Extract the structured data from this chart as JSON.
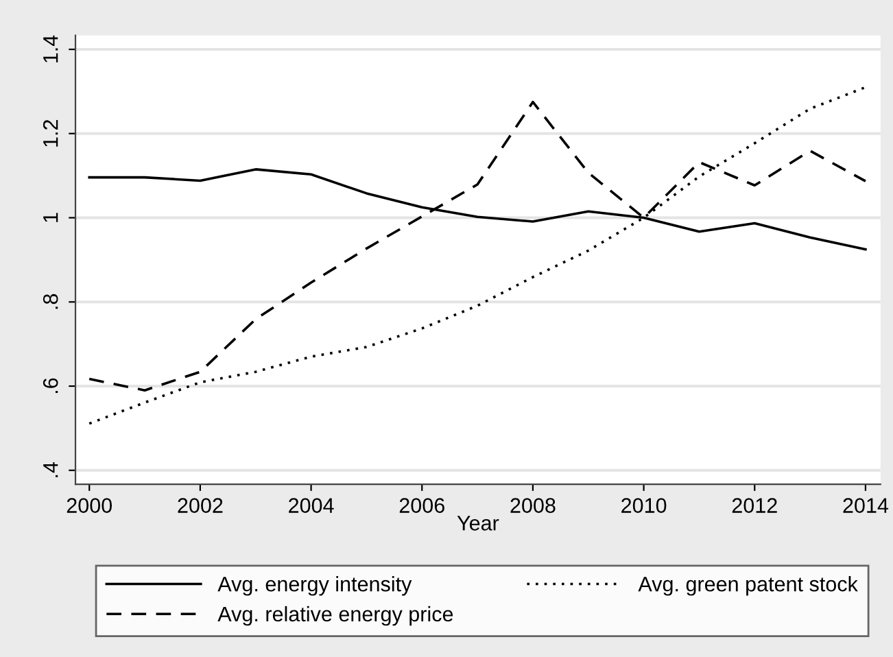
{
  "chart_data": {
    "type": "line",
    "xlabel": "Year",
    "x": [
      2000,
      2001,
      2002,
      2003,
      2004,
      2005,
      2006,
      2007,
      2008,
      2009,
      2010,
      2011,
      2012,
      2013,
      2014
    ],
    "series": [
      {
        "name": "Avg. energy intensity",
        "color": "#000000",
        "line_style": "solid",
        "values": [
          1.096,
          1.096,
          1.088,
          1.115,
          1.103,
          1.058,
          1.025,
          1.002,
          0.991,
          1.015,
          1.0,
          0.967,
          0.987,
          0.953,
          0.925
        ]
      },
      {
        "name": "Avg. relative energy price",
        "color": "#000000",
        "line_style": "dashed",
        "values": [
          0.617,
          0.59,
          0.634,
          0.759,
          0.846,
          0.927,
          1.003,
          1.079,
          1.275,
          1.107,
          1.0,
          1.132,
          1.077,
          1.159,
          1.087
        ]
      },
      {
        "name": "Avg. green patent stock",
        "color": "#000000",
        "line_style": "dotted",
        "values": [
          0.511,
          0.561,
          0.609,
          0.634,
          0.67,
          0.693,
          0.737,
          0.791,
          0.859,
          0.922,
          1.0,
          1.098,
          1.177,
          1.259,
          1.31
        ]
      }
    ],
    "xlim": [
      1999.75,
      2014.27
    ],
    "xticks": [
      2000,
      2002,
      2004,
      2006,
      2008,
      2010,
      2012,
      2014
    ],
    "ylim": [
      0.367,
      1.433
    ],
    "yticks": [
      {
        "value": 0.4,
        "label": ".4"
      },
      {
        "value": 0.6,
        "label": ".6"
      },
      {
        "value": 0.8,
        "label": ".8"
      },
      1,
      1.2,
      1.4
    ],
    "grid": "y",
    "legend": "bottom",
    "marker": "none"
  }
}
